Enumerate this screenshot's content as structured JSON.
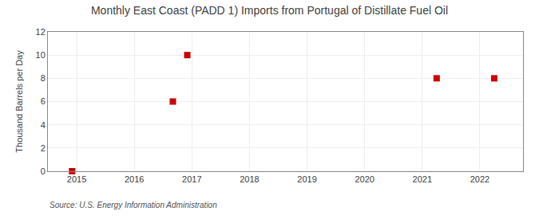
{
  "chart_data": {
    "type": "scatter",
    "title": "Monthly East Coast (PADD 1) Imports from Portugal of Distillate Fuel Oil",
    "ylabel": "Thousand Barrels per Day",
    "annotations": [
      "Source: U.S. Energy Information Administration"
    ],
    "x": [
      2014.92,
      2016.67,
      2016.92,
      2021.25,
      2022.25
    ],
    "values": [
      0,
      6,
      10,
      8,
      8
    ],
    "color": "#cc0000",
    "marker": "square",
    "xlim": [
      2014.5,
      2022.75
    ],
    "ylim": [
      0,
      12
    ],
    "xticks": [
      2015,
      2016,
      2017,
      2018,
      2019,
      2020,
      2021,
      2022
    ],
    "yticks": [
      0,
      2,
      4,
      6,
      8,
      10,
      12
    ],
    "grid": true
  }
}
